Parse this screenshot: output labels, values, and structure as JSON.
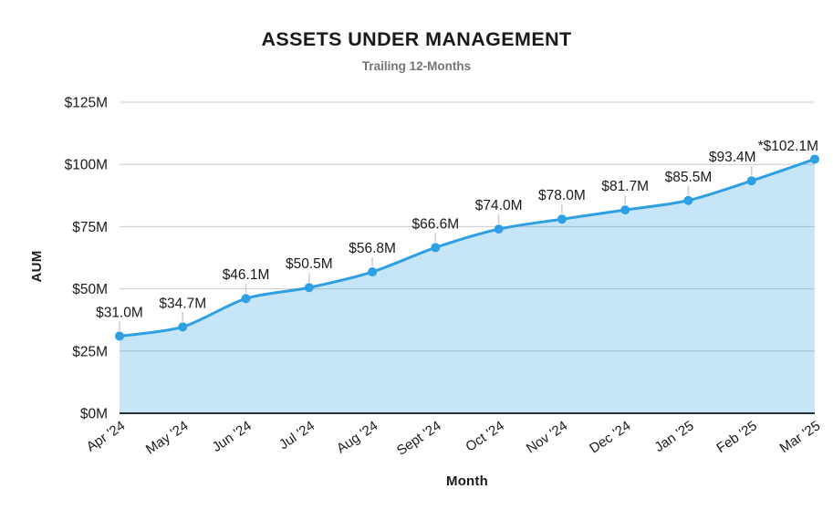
{
  "title": "ASSETS UNDER MANAGEMENT",
  "subtitle": "Trailing 12-Months",
  "chart_data": {
    "type": "area",
    "title": "ASSETS UNDER MANAGEMENT",
    "subtitle": "Trailing 12-Months",
    "xlabel": "Month",
    "ylabel": "AUM",
    "categories": [
      "Apr '24",
      "May '24",
      "Jun '24",
      "Jul '24",
      "Aug '24",
      "Sept '24",
      "Oct '24",
      "Nov '24",
      "Dec '24",
      "Jan '25",
      "Feb '25",
      "Mar '25"
    ],
    "series": [
      {
        "name": "AUM",
        "values": [
          31.0,
          34.7,
          46.1,
          50.5,
          56.8,
          66.6,
          74.0,
          78.0,
          81.7,
          85.5,
          93.4,
          102.1
        ]
      }
    ],
    "point_labels": [
      "$31.0M",
      "$34.7M",
      "$46.1M",
      "$50.5M",
      "$56.8M",
      "$66.6M",
      "$74.0M",
      "$78.0M",
      "$81.7M",
      "$85.5M",
      "$93.4M",
      "*$102.1M"
    ],
    "ylim": [
      0,
      125
    ],
    "ytick_values": [
      0,
      25,
      50,
      75,
      100,
      125
    ],
    "ytick_labels": [
      "$0M",
      "$25M",
      "$50M",
      "$75M",
      "$100M",
      "$125M"
    ],
    "grid": true,
    "legend_position": "none",
    "colors": {
      "line": "#2E9FE3",
      "marker": "#2E9FE3",
      "area_fill": "#2E9FE3",
      "gridline": "#CCCCCC",
      "leader_line": "#CCCCCC",
      "axis_line": "#263238",
      "title": "#1A1A1A",
      "subtitle": "#757575",
      "tick_label": "#1A1A1A",
      "data_label": "#1A1A1A",
      "background": "#FFFFFF"
    }
  }
}
